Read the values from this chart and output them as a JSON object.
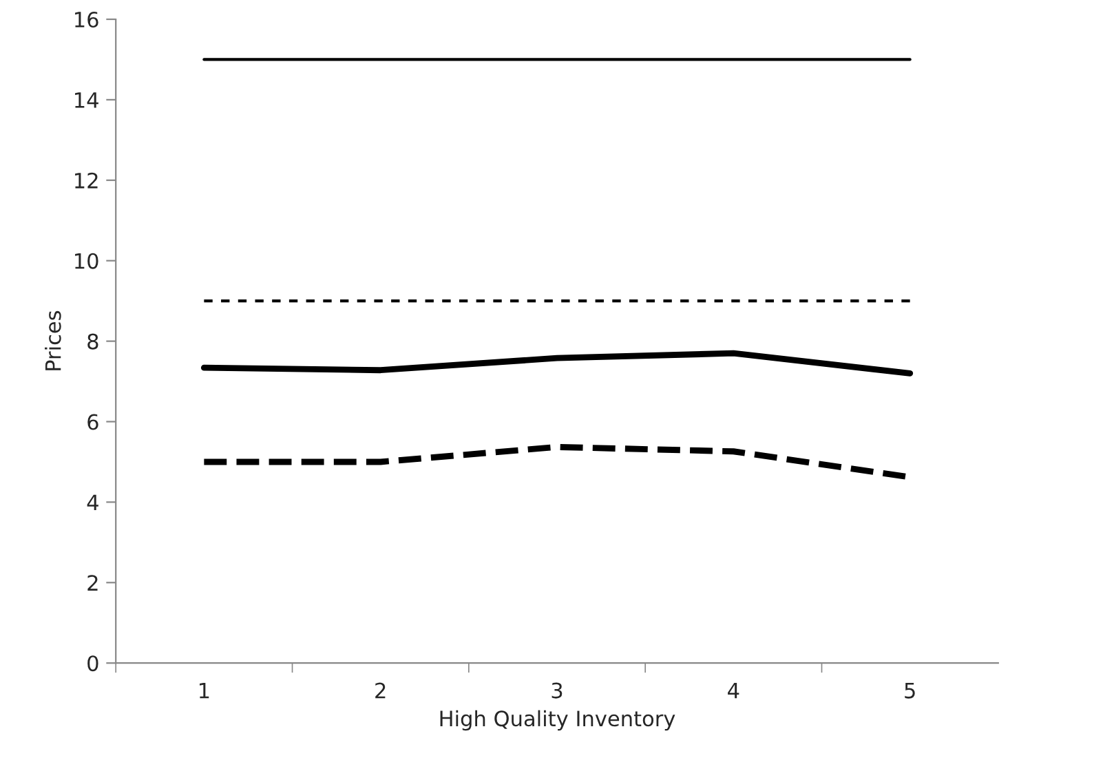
{
  "chart_data": {
    "type": "line",
    "xlabel": "High Quality Inventory",
    "ylabel": "Prices",
    "categories": [
      "1",
      "2",
      "3",
      "4",
      "5"
    ],
    "series": [
      {
        "color": "#000000",
        "line_style": "solid",
        "values": [
          15,
          15,
          15,
          15,
          15
        ]
      },
      {
        "color": "#000000",
        "line_style": "dashed",
        "values": [
          9,
          9,
          9,
          9,
          9
        ]
      },
      {
        "color": "#000000",
        "line_style": "solid",
        "values": [
          7.34,
          7.28,
          7.58,
          7.7,
          7.2
        ]
      },
      {
        "color": "#000000",
        "line_style": "dashed",
        "values": [
          5.0,
          5.0,
          5.37,
          5.26,
          4.62
        ]
      }
    ],
    "ylim": [
      0,
      16
    ],
    "yticks": [
      0,
      2,
      4,
      6,
      8,
      10,
      12,
      14,
      16
    ],
    "grid": false,
    "legend": false,
    "marker": "none"
  }
}
